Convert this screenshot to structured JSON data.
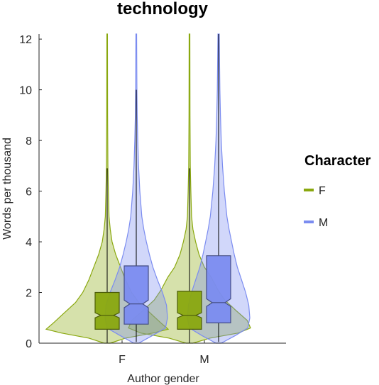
{
  "chart_data": {
    "type": "violin",
    "title": "technology",
    "xlabel": "Author gender",
    "ylabel": "Words per thousand",
    "ylim": [
      0,
      12.2
    ],
    "yticks": [
      0,
      2,
      4,
      6,
      8,
      10,
      12
    ],
    "categories": [
      "F",
      "M"
    ],
    "grid": false,
    "legend": {
      "title": "Character",
      "placement": "right"
    },
    "series": [
      {
        "name": "F",
        "color": "#8aa80f",
        "boxes": [
          {
            "category": "F",
            "q1": 0.55,
            "median": 1.1,
            "q3": 2.0,
            "notch_low": 1.0,
            "notch_high": 1.2,
            "whisker_low": 0,
            "whisker_high": 6.9
          },
          {
            "category": "M",
            "q1": 0.55,
            "median": 1.1,
            "q3": 2.05,
            "notch_low": 1.0,
            "notch_high": 1.2,
            "whisker_low": 0,
            "whisker_high": 6.9
          }
        ],
        "violins": [
          {
            "category": "F",
            "min": 0,
            "max": 12.2,
            "density": [
              [
                0,
                0.05
              ],
              [
                0.2,
                0.3
              ],
              [
                0.4,
                0.75
              ],
              [
                0.55,
                1.0
              ],
              [
                0.8,
                0.88
              ],
              [
                1.2,
                0.7
              ],
              [
                1.6,
                0.52
              ],
              [
                2.0,
                0.4
              ],
              [
                2.5,
                0.3
              ],
              [
                3.0,
                0.22
              ],
              [
                3.5,
                0.14
              ],
              [
                4.0,
                0.08
              ],
              [
                4.5,
                0.05
              ],
              [
                5.0,
                0.03
              ],
              [
                6.0,
                0.02
              ],
              [
                7.0,
                0.012
              ],
              [
                9.0,
                0.007
              ],
              [
                12.2,
                0.005
              ]
            ]
          },
          {
            "category": "M",
            "min": 0,
            "max": 12.2,
            "density": [
              [
                0,
                0.05
              ],
              [
                0.2,
                0.3
              ],
              [
                0.4,
                0.72
              ],
              [
                0.6,
                0.9
              ],
              [
                0.9,
                0.85
              ],
              [
                1.3,
                0.68
              ],
              [
                1.7,
                0.52
              ],
              [
                2.1,
                0.42
              ],
              [
                2.6,
                0.32
              ],
              [
                3.0,
                0.22
              ],
              [
                3.5,
                0.14
              ],
              [
                4.0,
                0.09
              ],
              [
                4.5,
                0.05
              ],
              [
                5.0,
                0.03
              ],
              [
                6.0,
                0.02
              ],
              [
                7.0,
                0.012
              ],
              [
                9.0,
                0.007
              ],
              [
                12.2,
                0.005
              ]
            ]
          }
        ]
      },
      {
        "name": "M",
        "color": "#7b8cf0",
        "boxes": [
          {
            "category": "F",
            "q1": 0.75,
            "median": 1.55,
            "q3": 3.05,
            "notch_low": 1.4,
            "notch_high": 1.7,
            "whisker_low": 0.05,
            "whisker_high": 10.0
          },
          {
            "category": "M",
            "q1": 0.8,
            "median": 1.6,
            "q3": 3.45,
            "notch_low": 1.45,
            "notch_high": 1.75,
            "whisker_low": 0.05,
            "whisker_high": 12.2
          }
        ],
        "violins": [
          {
            "category": "F",
            "min": 0,
            "max": 12.2,
            "density": [
              [
                0,
                0.05
              ],
              [
                0.3,
                0.32
              ],
              [
                0.6,
                0.58
              ],
              [
                1.0,
                0.62
              ],
              [
                1.5,
                0.6
              ],
              [
                2.0,
                0.52
              ],
              [
                2.5,
                0.42
              ],
              [
                3.0,
                0.33
              ],
              [
                3.5,
                0.26
              ],
              [
                4.0,
                0.2
              ],
              [
                4.5,
                0.15
              ],
              [
                5.0,
                0.11
              ],
              [
                6.0,
                0.07
              ],
              [
                7.0,
                0.045
              ],
              [
                8.0,
                0.03
              ],
              [
                9.0,
                0.018
              ],
              [
                10.0,
                0.012
              ],
              [
                12.2,
                0.007
              ]
            ]
          },
          {
            "category": "M",
            "min": 0,
            "max": 12.2,
            "density": [
              [
                0,
                0.05
              ],
              [
                0.3,
                0.32
              ],
              [
                0.6,
                0.56
              ],
              [
                1.0,
                0.6
              ],
              [
                1.5,
                0.58
              ],
              [
                2.0,
                0.52
              ],
              [
                2.5,
                0.44
              ],
              [
                3.0,
                0.36
              ],
              [
                3.5,
                0.3
              ],
              [
                4.0,
                0.25
              ],
              [
                4.5,
                0.2
              ],
              [
                5.0,
                0.16
              ],
              [
                6.0,
                0.11
              ],
              [
                7.0,
                0.075
              ],
              [
                8.0,
                0.05
              ],
              [
                9.0,
                0.035
              ],
              [
                10.0,
                0.024
              ],
              [
                12.2,
                0.012
              ]
            ]
          }
        ]
      }
    ]
  }
}
